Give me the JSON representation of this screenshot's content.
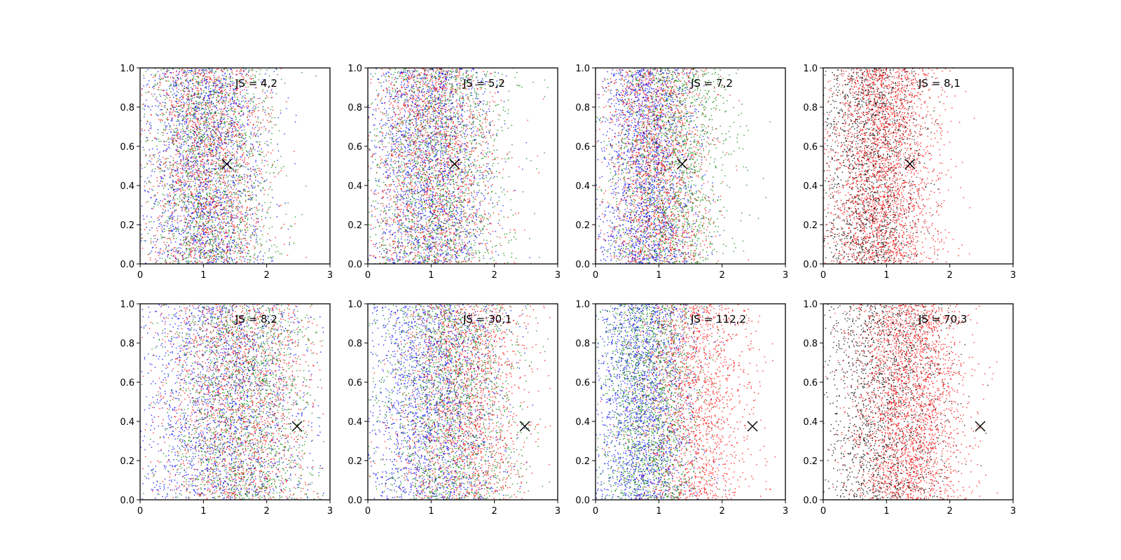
{
  "figure": {
    "layout": "2 rows x 4 columns",
    "background": "#ffffff"
  },
  "colors": {
    "blue": "#0000ff",
    "green": "#008000",
    "red": "#ff0000",
    "black": "#000000",
    "marker": "#000000"
  },
  "chart_data": [
    {
      "type": "scatter",
      "row": 1,
      "col": 1,
      "annotation": "JS = 4,2",
      "xlim": [
        0,
        3
      ],
      "ylim": [
        0,
        1.0
      ],
      "xticks": [
        "0",
        "1",
        "2",
        "3"
      ],
      "yticks": [
        "0.0",
        "0.2",
        "0.4",
        "0.6",
        "0.8",
        "1.0"
      ],
      "marker_point": {
        "x": 1.37,
        "y": 0.51,
        "symbol": "x"
      },
      "point_distribution": {
        "x_range": [
          0,
          2.9
        ],
        "y_range": [
          0,
          1
        ]
      },
      "series": [
        {
          "color": "blue",
          "x_center": 1.0,
          "x_spread": 0.5,
          "count": 1700
        },
        {
          "color": "green",
          "x_center": 1.1,
          "x_spread": 0.5,
          "count": 1700
        },
        {
          "color": "red",
          "x_center": 1.05,
          "x_spread": 0.5,
          "count": 1700
        }
      ]
    },
    {
      "type": "scatter",
      "row": 1,
      "col": 2,
      "annotation": "JS = 5,2",
      "xlim": [
        0,
        3
      ],
      "ylim": [
        0,
        1.0
      ],
      "xticks": [
        "0",
        "1",
        "2",
        "3"
      ],
      "yticks": [
        "0.0",
        "0.2",
        "0.4",
        "0.6",
        "0.8",
        "1.0"
      ],
      "marker_point": {
        "x": 1.37,
        "y": 0.51,
        "symbol": "x"
      },
      "point_distribution": {
        "x_range": [
          0,
          2.9
        ],
        "y_range": [
          0,
          1
        ]
      },
      "series": [
        {
          "color": "blue",
          "x_center": 0.95,
          "x_spread": 0.5,
          "count": 1700
        },
        {
          "color": "green",
          "x_center": 1.1,
          "x_spread": 0.55,
          "count": 1700
        },
        {
          "color": "red",
          "x_center": 1.0,
          "x_spread": 0.5,
          "count": 1700
        }
      ]
    },
    {
      "type": "scatter",
      "row": 1,
      "col": 3,
      "annotation": "JS = 7,2",
      "xlim": [
        0,
        3
      ],
      "ylim": [
        0,
        1.0
      ],
      "xticks": [
        "0",
        "1",
        "2",
        "3"
      ],
      "yticks": [
        "0.0",
        "0.2",
        "0.4",
        "0.6",
        "0.8",
        "1.0"
      ],
      "marker_point": {
        "x": 1.37,
        "y": 0.51,
        "symbol": "x"
      },
      "point_distribution": {
        "x_range": [
          0,
          2.9
        ],
        "y_range": [
          0,
          1
        ]
      },
      "series": [
        {
          "color": "blue",
          "x_center": 0.8,
          "x_spread": 0.4,
          "count": 1700
        },
        {
          "color": "green",
          "x_center": 1.15,
          "x_spread": 0.5,
          "count": 1700
        },
        {
          "color": "red",
          "x_center": 0.95,
          "x_spread": 0.4,
          "count": 1700
        }
      ]
    },
    {
      "type": "scatter",
      "row": 1,
      "col": 4,
      "annotation": "JS = 8,1",
      "xlim": [
        0,
        3
      ],
      "ylim": [
        0,
        1.0
      ],
      "xticks": [
        "0",
        "1",
        "2",
        "3"
      ],
      "yticks": [
        "0.0",
        "0.2",
        "0.4",
        "0.6",
        "0.8",
        "1.0"
      ],
      "marker_point": {
        "x": 1.37,
        "y": 0.51,
        "symbol": "x"
      },
      "point_distribution": {
        "x_range": [
          0,
          2.9
        ],
        "y_range": [
          0,
          1
        ]
      },
      "series": [
        {
          "color": "black",
          "x_center": 0.75,
          "x_spread": 0.4,
          "count": 1500
        },
        {
          "color": "red",
          "x_center": 0.95,
          "x_spread": 0.45,
          "count": 2600
        }
      ]
    },
    {
      "type": "scatter",
      "row": 2,
      "col": 1,
      "annotation": "JS = 8,2",
      "xlim": [
        0,
        3
      ],
      "ylim": [
        0,
        1.0
      ],
      "xticks": [
        "0",
        "1",
        "2",
        "3"
      ],
      "yticks": [
        "0.0",
        "0.2",
        "0.4",
        "0.6",
        "0.8",
        "1.0"
      ],
      "marker_point": {
        "x": 2.48,
        "y": 0.375,
        "symbol": "x"
      },
      "point_distribution": {
        "x_range": [
          0,
          2.9
        ],
        "y_range": [
          0,
          1
        ]
      },
      "series": [
        {
          "color": "blue",
          "x_center": 1.3,
          "x_spread": 0.7,
          "count": 1700
        },
        {
          "color": "green",
          "x_center": 1.6,
          "x_spread": 0.6,
          "count": 1700
        },
        {
          "color": "red",
          "x_center": 1.55,
          "x_spread": 0.6,
          "count": 1700
        }
      ]
    },
    {
      "type": "scatter",
      "row": 2,
      "col": 2,
      "annotation": "JS = 30,1",
      "xlim": [
        0,
        3
      ],
      "ylim": [
        0,
        1.0
      ],
      "xticks": [
        "0",
        "1",
        "2",
        "3"
      ],
      "yticks": [
        "0.0",
        "0.2",
        "0.4",
        "0.6",
        "0.8",
        "1.0"
      ],
      "marker_point": {
        "x": 2.48,
        "y": 0.375,
        "symbol": "x"
      },
      "point_distribution": {
        "x_range": [
          0,
          2.9
        ],
        "y_range": [
          0,
          1
        ]
      },
      "series": [
        {
          "color": "blue",
          "x_center": 1.0,
          "x_spread": 0.55,
          "count": 1700
        },
        {
          "color": "green",
          "x_center": 1.3,
          "x_spread": 0.55,
          "count": 1700
        },
        {
          "color": "red",
          "x_center": 1.5,
          "x_spread": 0.5,
          "count": 1700
        }
      ]
    },
    {
      "type": "scatter",
      "row": 2,
      "col": 3,
      "annotation": "JS = 112,2",
      "xlim": [
        0,
        3
      ],
      "ylim": [
        0,
        1.0
      ],
      "xticks": [
        "0",
        "1",
        "2",
        "3"
      ],
      "yticks": [
        "0.0",
        "0.2",
        "0.4",
        "0.6",
        "0.8",
        "1.0"
      ],
      "marker_point": {
        "x": 2.48,
        "y": 0.375,
        "symbol": "x"
      },
      "point_distribution": {
        "x_range": [
          0,
          2.9
        ],
        "y_range": [
          0,
          1
        ]
      },
      "series": [
        {
          "color": "blue",
          "x_center": 0.75,
          "x_spread": 0.4,
          "count": 1700
        },
        {
          "color": "green",
          "x_center": 0.85,
          "x_spread": 0.4,
          "count": 1700
        },
        {
          "color": "red",
          "x_center": 1.55,
          "x_spread": 0.45,
          "count": 1700
        }
      ]
    },
    {
      "type": "scatter",
      "row": 2,
      "col": 4,
      "annotation": "JS = 70,3",
      "xlim": [
        0,
        3
      ],
      "ylim": [
        0,
        1.0
      ],
      "xticks": [
        "0",
        "1",
        "2",
        "3"
      ],
      "yticks": [
        "0.0",
        "0.2",
        "0.4",
        "0.6",
        "0.8",
        "1.0"
      ],
      "marker_point": {
        "x": 2.48,
        "y": 0.375,
        "symbol": "x"
      },
      "point_distribution": {
        "x_range": [
          0,
          2.9
        ],
        "y_range": [
          0,
          1
        ]
      },
      "series": [
        {
          "color": "black",
          "x_center": 0.95,
          "x_spread": 0.5,
          "count": 1500
        },
        {
          "color": "red",
          "x_center": 1.35,
          "x_spread": 0.45,
          "count": 2600
        }
      ]
    }
  ]
}
